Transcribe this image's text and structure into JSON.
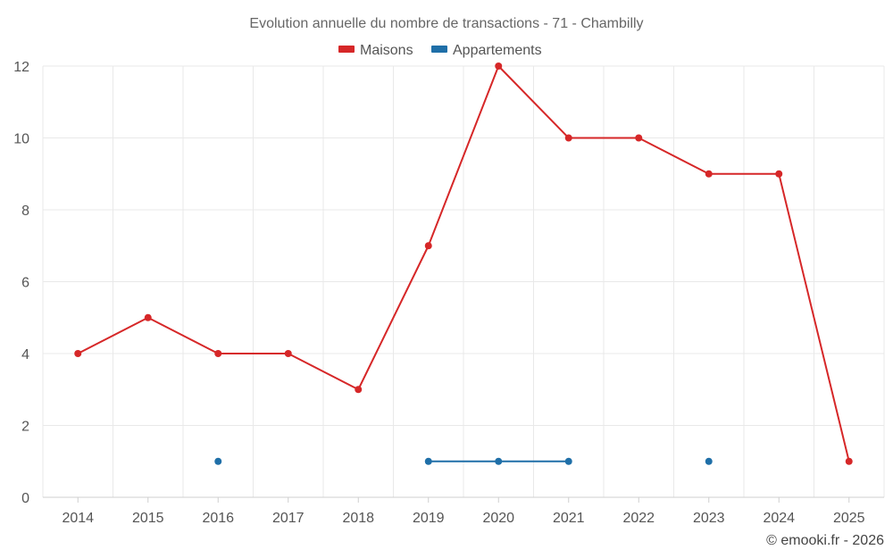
{
  "chart_data": {
    "type": "line",
    "title": "Evolution annuelle du nombre de transactions - 71 - Chambilly",
    "categories": [
      "2014",
      "2015",
      "2016",
      "2017",
      "2018",
      "2019",
      "2020",
      "2021",
      "2022",
      "2023",
      "2024",
      "2025"
    ],
    "series": [
      {
        "name": "Maisons",
        "color": "#d62728",
        "values": [
          4,
          5,
          4,
          4,
          3,
          7,
          12,
          10,
          10,
          9,
          9,
          1
        ]
      },
      {
        "name": "Appartements",
        "color": "#1f6fa8",
        "values": [
          null,
          null,
          1,
          null,
          null,
          1,
          1,
          1,
          null,
          1,
          null,
          null
        ]
      }
    ],
    "ylim": [
      0,
      12
    ],
    "yticks": [
      0,
      2,
      4,
      6,
      8,
      10,
      12
    ],
    "xlabel": "",
    "ylabel": "",
    "grid": true,
    "legend": "top-center"
  },
  "credit": "© emooki.fr - 2026"
}
